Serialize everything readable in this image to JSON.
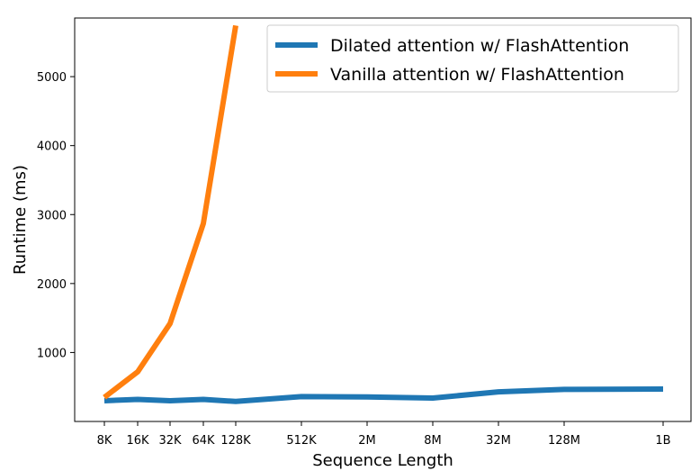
{
  "chart_data": {
    "type": "line",
    "xlabel": "Sequence Length",
    "ylabel": "Runtime (ms)",
    "x_ticks": [
      "8K",
      "16K",
      "32K",
      "64K",
      "128K",
      "512K",
      "2M",
      "8M",
      "32M",
      "128M",
      "1B"
    ],
    "y_ticks": [
      "1000",
      "2000",
      "3000",
      "4000",
      "5000"
    ],
    "ylim": [
      0,
      5850
    ],
    "grid": false,
    "legend_position": "top-right",
    "series": [
      {
        "name": "Dilated attention w/ FlashAttention",
        "color": "#1f77b4",
        "x": [
          "8K",
          "16K",
          "32K",
          "64K",
          "128K",
          "512K",
          "2M",
          "8M",
          "32M",
          "128M",
          "1B"
        ],
        "values": [
          300,
          320,
          300,
          320,
          290,
          360,
          355,
          340,
          430,
          465,
          470
        ]
      },
      {
        "name": "Vanilla attention w/ FlashAttention",
        "color": "#ff7f0e",
        "x": [
          "8K",
          "16K",
          "32K",
          "64K",
          "128K"
        ],
        "values": [
          350,
          720,
          1420,
          2870,
          5740
        ]
      }
    ]
  }
}
